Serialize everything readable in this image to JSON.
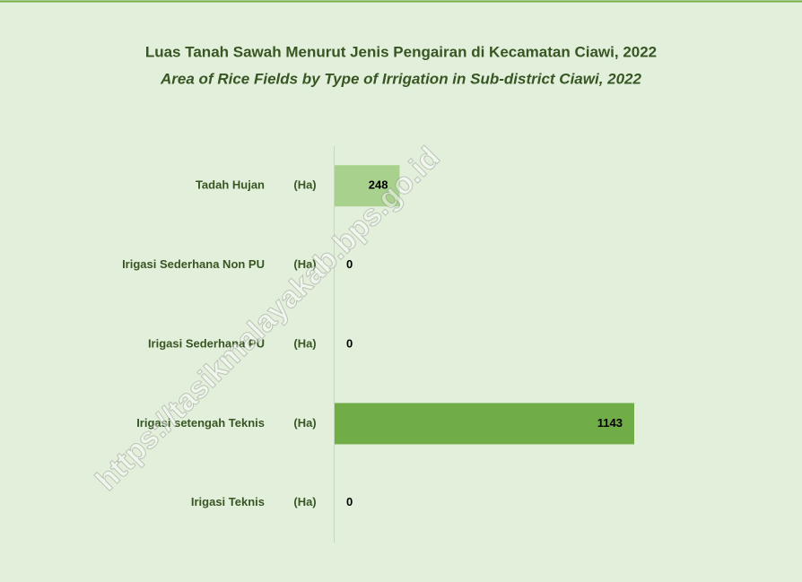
{
  "chart_data": {
    "type": "bar",
    "orientation": "horizontal",
    "title": "Luas Tanah Sawah Menurut Jenis Pengairan di Kecamatan Ciawi, 2022",
    "subtitle": "Area of Rice Fields by Type of Irrigation in Sub-district Ciawi, 2022",
    "unit": "(Ha)",
    "categories": [
      "Tadah Hujan",
      "Irigasi Sederhana Non PU",
      "Irigasi Sederhana PU",
      "Irigasi setengah Teknis",
      "Irigasi Teknis"
    ],
    "values": [
      248,
      0,
      0,
      1143,
      0
    ],
    "colors": [
      "#a9d18e",
      "#70ad47",
      "#70ad47",
      "#70ad47",
      "#70ad47"
    ],
    "watermark": "https://tasikmalayakab.bps.go.id"
  }
}
